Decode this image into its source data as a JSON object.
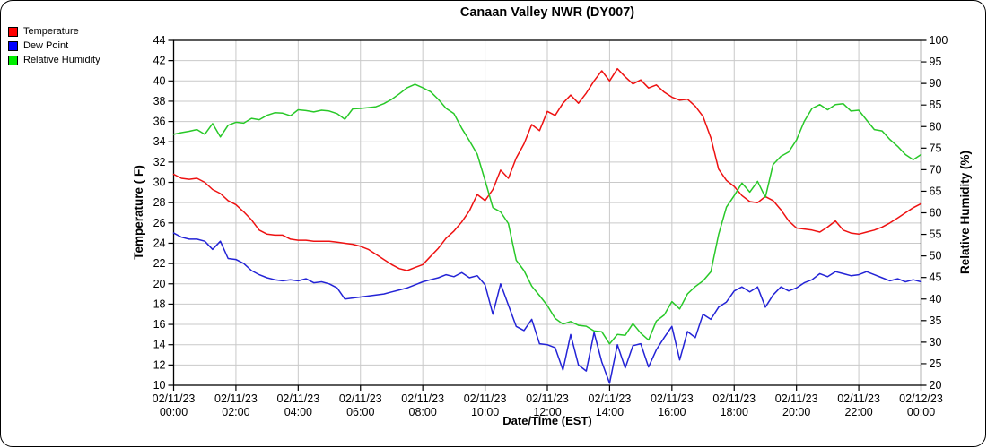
{
  "chart": {
    "title": "Canaan Valley NWR (DY007)",
    "x_axis_label": "Date/Time (EST)",
    "y_left_label": "Temperature ( F)",
    "y_right_label": "Relative Humidity (%)",
    "legend": [
      {
        "label": "Temperature",
        "color": "#ff0000"
      },
      {
        "label": "Dew Point",
        "color": "#0000ff"
      },
      {
        "label": "Relative Humidity",
        "color": "#00ee00"
      }
    ]
  },
  "chart_data": {
    "type": "line",
    "title": "Canaan Valley NWR (DY007)",
    "xlabel": "Date/Time (EST)",
    "ylabel_left": "Temperature ( F)",
    "ylabel_right": "Relative Humidity (%)",
    "grid": true,
    "legend_position": "top-left",
    "colors": {
      "grid": "#c9c9c9",
      "axis": "#000000"
    },
    "x_start_hours": 0,
    "x_step_hours": 0.25,
    "x_end_hours": 24,
    "x_ticks": [
      {
        "date": "02/11/23",
        "time": "00:00"
      },
      {
        "date": "02/11/23",
        "time": "02:00"
      },
      {
        "date": "02/11/23",
        "time": "04:00"
      },
      {
        "date": "02/11/23",
        "time": "06:00"
      },
      {
        "date": "02/11/23",
        "time": "08:00"
      },
      {
        "date": "02/11/23",
        "time": "10:00"
      },
      {
        "date": "02/11/23",
        "time": "12:00"
      },
      {
        "date": "02/11/23",
        "time": "14:00"
      },
      {
        "date": "02/11/23",
        "time": "16:00"
      },
      {
        "date": "02/11/23",
        "time": "18:00"
      },
      {
        "date": "02/11/23",
        "time": "20:00"
      },
      {
        "date": "02/11/23",
        "time": "22:00"
      },
      {
        "date": "02/12/23",
        "time": "00:00"
      }
    ],
    "y_left": {
      "min": 10,
      "max": 44,
      "tick_step": 2
    },
    "y_right": {
      "min": 20,
      "max": 100,
      "tick_step": 5
    },
    "series": [
      {
        "name": "Temperature",
        "axis": "left",
        "color": "#ee1111",
        "values": [
          30.8,
          30.4,
          30.3,
          30.4,
          30.0,
          29.3,
          28.9,
          28.2,
          27.8,
          27.1,
          26.3,
          25.3,
          24.9,
          24.8,
          24.8,
          24.4,
          24.3,
          24.3,
          24.2,
          24.2,
          24.2,
          24.1,
          24.0,
          23.9,
          23.7,
          23.4,
          22.9,
          22.4,
          21.9,
          21.5,
          21.3,
          21.6,
          21.9,
          22.7,
          23.5,
          24.5,
          25.2,
          26.1,
          27.2,
          28.8,
          28.2,
          29.3,
          31.2,
          30.4,
          32.4,
          33.8,
          35.7,
          35.1,
          37.0,
          36.6,
          37.8,
          38.6,
          37.8,
          38.8,
          40.0,
          41.0,
          40.0,
          41.2,
          40.4,
          39.7,
          40.1,
          39.3,
          39.6,
          38.9,
          38.4,
          38.1,
          38.2,
          37.5,
          36.5,
          34.4,
          31.3,
          30.2,
          29.6,
          28.7,
          28.1,
          28.0,
          28.6,
          28.2,
          27.3,
          26.2,
          25.5,
          25.4,
          25.3,
          25.1,
          25.6,
          26.2,
          25.3,
          25.0,
          24.9,
          25.1,
          25.3,
          25.6,
          26.0,
          26.5,
          27.0,
          27.5,
          27.9
        ]
      },
      {
        "name": "Dew Point",
        "axis": "left",
        "color": "#2323d6",
        "values": [
          25.0,
          24.6,
          24.4,
          24.4,
          24.2,
          23.4,
          24.2,
          22.5,
          22.4,
          22.0,
          21.3,
          20.9,
          20.6,
          20.4,
          20.3,
          20.4,
          20.3,
          20.5,
          20.1,
          20.2,
          20.0,
          19.6,
          18.5,
          18.6,
          18.7,
          18.8,
          18.9,
          19.0,
          19.2,
          19.4,
          19.6,
          19.9,
          20.2,
          20.4,
          20.6,
          20.9,
          20.7,
          21.1,
          20.6,
          20.8,
          19.9,
          17.0,
          20.0,
          17.9,
          15.8,
          15.4,
          16.5,
          14.1,
          14.0,
          13.7,
          11.5,
          15.0,
          12.0,
          11.4,
          15.2,
          12.3,
          10.2,
          14.0,
          11.7,
          13.9,
          14.1,
          11.8,
          13.5,
          14.7,
          15.8,
          12.5,
          15.3,
          14.7,
          17.0,
          16.5,
          17.7,
          18.2,
          19.3,
          19.7,
          19.2,
          19.7,
          17.7,
          18.9,
          19.7,
          19.3,
          19.6,
          20.1,
          20.4,
          21.0,
          20.7,
          21.2,
          21.0,
          20.8,
          20.9,
          21.2,
          20.9,
          20.6,
          20.3,
          20.5,
          20.2,
          20.4,
          20.2
        ]
      },
      {
        "name": "Relative Humidity",
        "axis": "right",
        "color": "#28c828",
        "values": [
          78.2,
          78.6,
          78.9,
          79.3,
          78.2,
          80.7,
          77.6,
          80.3,
          81.0,
          80.8,
          81.9,
          81.6,
          82.6,
          83.2,
          83.1,
          82.5,
          83.9,
          83.7,
          83.4,
          83.8,
          83.6,
          83.0,
          81.7,
          84.1,
          84.2,
          84.4,
          84.6,
          85.3,
          86.3,
          87.6,
          89.0,
          89.8,
          89.0,
          88.1,
          86.3,
          84.2,
          83.0,
          79.6,
          76.7,
          73.6,
          67.5,
          61.2,
          60.2,
          57.5,
          49.0,
          46.6,
          43.0,
          40.8,
          38.5,
          35.5,
          34.2,
          34.8,
          33.9,
          33.7,
          32.6,
          32.4,
          29.6,
          31.8,
          31.6,
          34.3,
          32.1,
          30.5,
          34.9,
          36.3,
          39.4,
          37.7,
          41.2,
          42.9,
          44.2,
          46.3,
          55.0,
          61.3,
          64.0,
          66.9,
          64.8,
          67.3,
          63.6,
          71.2,
          73.1,
          74.1,
          76.9,
          81.2,
          84.2,
          85.1,
          83.9,
          85.1,
          85.3,
          83.6,
          83.8,
          81.5,
          79.3,
          79.0,
          77.0,
          75.4,
          73.5,
          72.3,
          73.5
        ]
      }
    ]
  }
}
